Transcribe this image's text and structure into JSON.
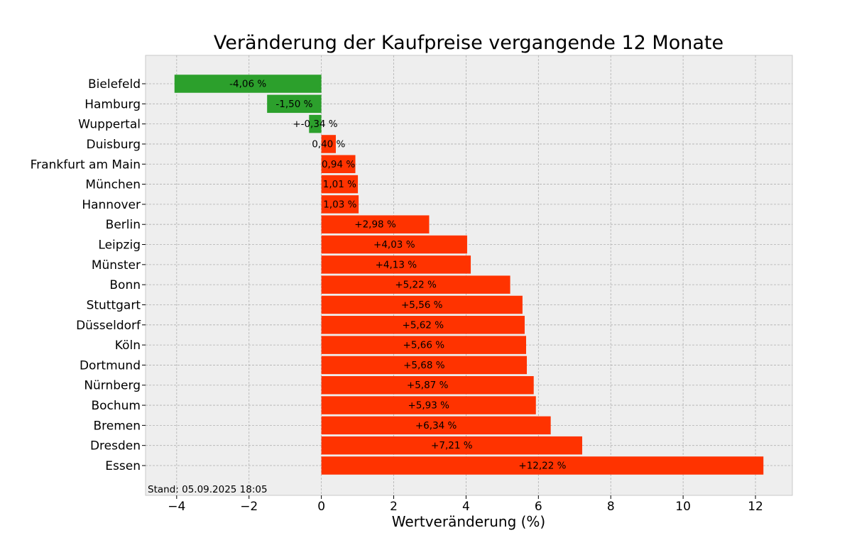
{
  "chart_data": {
    "type": "bar",
    "orientation": "horizontal",
    "title": "Veränderung der Kaufpreise vergangende 12 Monate",
    "xlabel": "Wertveränderung (%)",
    "ylabel": "",
    "xlim": [
      -4.86,
      13.02
    ],
    "xticks": [
      -4,
      -2,
      0,
      2,
      4,
      6,
      8,
      10,
      12
    ],
    "xtick_labels": [
      "−4",
      "−2",
      "0",
      "2",
      "4",
      "6",
      "8",
      "10",
      "12"
    ],
    "grid": true,
    "colors": {
      "negative": "#2ca02c",
      "positive": "#ff3300",
      "background": "#eeeeee",
      "grid": "#b0b0b0"
    },
    "categories": [
      "Bielefeld",
      "Hamburg",
      "Wuppertal",
      "Duisburg",
      "Frankfurt am Main",
      "München",
      "Hannover",
      "Berlin",
      "Leipzig",
      "Münster",
      "Bonn",
      "Stuttgart",
      "Düsseldorf",
      "Köln",
      "Dortmund",
      "Nürnberg",
      "Bochum",
      "Bremen",
      "Dresden",
      "Essen"
    ],
    "values": [
      -4.06,
      -1.5,
      -0.34,
      0.4,
      0.94,
      1.01,
      1.03,
      2.98,
      4.03,
      4.13,
      5.22,
      5.56,
      5.62,
      5.66,
      5.68,
      5.87,
      5.93,
      6.34,
      7.21,
      12.22
    ],
    "labels": [
      "-4,06 %",
      "-1,50 %",
      "+-0,34 %",
      "0,40 %",
      "0,94 %",
      "1,01 %",
      "1,03 %",
      "+2,98 %",
      "+4,03 %",
      "+4,13 %",
      "+5,22 %",
      "+5,56 %",
      "+5,62 %",
      "+5,66 %",
      "+5,68 %",
      "+5,87 %",
      "+5,93 %",
      "+6,34 %",
      "+7,21 %",
      "+12,22 %"
    ],
    "annotation": "Stand: 05.09.2025 18:05"
  }
}
